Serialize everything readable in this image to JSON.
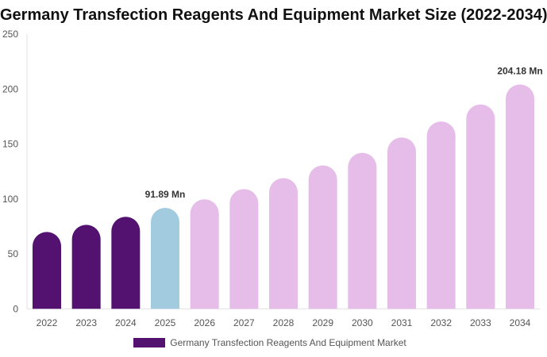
{
  "chart_data": {
    "type": "bar",
    "title": "Germany Transfection Reagents And Equipment Market Size (2022-2034)",
    "categories": [
      "2022",
      "2023",
      "2024",
      "2025",
      "2026",
      "2027",
      "2028",
      "2029",
      "2030",
      "2031",
      "2032",
      "2033",
      "2034"
    ],
    "series": [
      {
        "name": "Germany Transfection Reagents And Equipment Market",
        "values": [
          70.0,
          76.5,
          83.8,
          91.89,
          99.7,
          109.0,
          119.0,
          130.5,
          142.0,
          156.0,
          170.5,
          186.0,
          204.18
        ]
      }
    ],
    "data_labels": [
      {
        "category": "2025",
        "text": "91.89 Mn"
      },
      {
        "category": "2034",
        "text": "204.18 Mn"
      }
    ],
    "yticks": [
      0,
      50,
      100,
      150,
      200,
      250
    ],
    "ylim": [
      0,
      250
    ],
    "xlabel": "",
    "ylabel": "",
    "grid": false,
    "legend": "bottom",
    "colors": {
      "historical": "#541270",
      "current": "#a3cbe0",
      "forecast": "#e6bde8"
    }
  }
}
